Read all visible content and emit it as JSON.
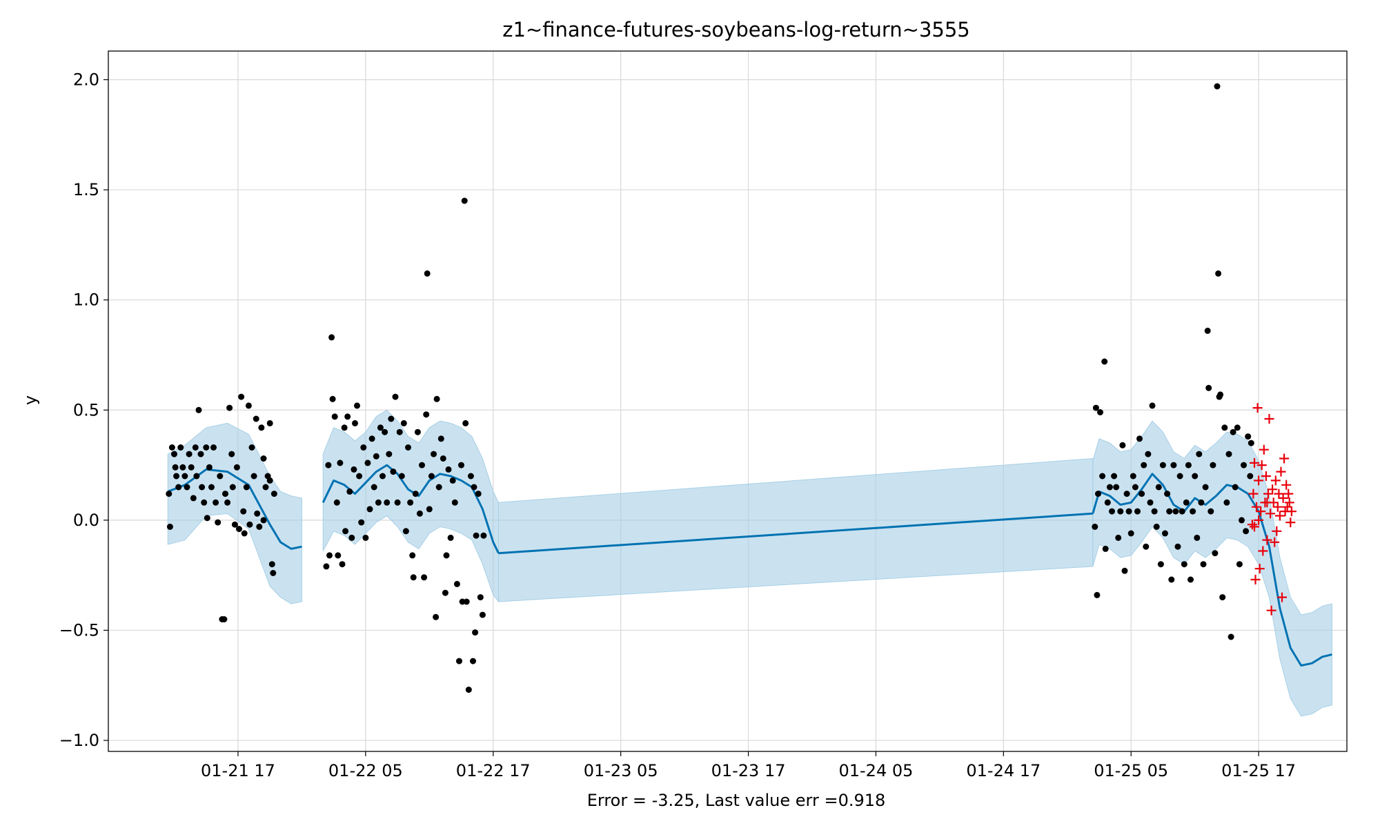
{
  "chart_data": {
    "type": "line",
    "title": "z1~finance-futures-soybeans-log-return~3555",
    "xlabel": "Error = -3.25, Last value err =0.918",
    "ylabel": "y",
    "x_ticks": [
      "01-21 17",
      "01-22 05",
      "01-22 17",
      "01-23 05",
      "01-23 17",
      "01-24 05",
      "01-24 17",
      "01-25 05",
      "01-25 17"
    ],
    "y_ticks": [
      "−1.0",
      "−0.5",
      "0.0",
      "0.5",
      "1.0",
      "1.5",
      "2.0"
    ],
    "ylim": [
      -1.05,
      2.13
    ],
    "xlim_hours_from_01_21_17": [
      -12.2,
      104.3
    ],
    "grid": true,
    "legend": "none",
    "colors": {
      "forecast": "#0072b2",
      "interval": "#a6cfe6",
      "observed": "#000000",
      "holdout": "#e8000b"
    },
    "forecast_segments": [
      {
        "x": [
          -6.6,
          -5,
          -3,
          -1,
          1,
          3,
          4,
          5,
          6
        ],
        "y": [
          0.13,
          0.16,
          0.23,
          0.22,
          0.16,
          -0.02,
          -0.1,
          -0.13,
          -0.12
        ],
        "band_upper": [
          0.3,
          0.34,
          0.42,
          0.44,
          0.39,
          0.2,
          0.13,
          0.11,
          0.1
        ],
        "band_lower": [
          -0.11,
          -0.09,
          0.02,
          0.03,
          -0.04,
          -0.3,
          -0.35,
          -0.38,
          -0.37
        ]
      },
      {
        "x": [
          8,
          9,
          10,
          11,
          12,
          13,
          14,
          15,
          16,
          17,
          18,
          19,
          20,
          21,
          22,
          23,
          24,
          24.5
        ],
        "y": [
          0.08,
          0.18,
          0.16,
          0.12,
          0.17,
          0.22,
          0.25,
          0.21,
          0.14,
          0.11,
          0.18,
          0.21,
          0.2,
          0.18,
          0.15,
          0.05,
          -0.1,
          -0.15
        ],
        "band_upper": [
          0.3,
          0.42,
          0.4,
          0.36,
          0.4,
          0.47,
          0.5,
          0.45,
          0.38,
          0.35,
          0.42,
          0.45,
          0.44,
          0.42,
          0.38,
          0.28,
          0.13,
          0.08
        ],
        "band_lower": [
          -0.14,
          -0.05,
          -0.07,
          -0.11,
          -0.06,
          -0.01,
          0.02,
          -0.03,
          -0.1,
          -0.13,
          -0.06,
          -0.03,
          -0.04,
          -0.06,
          -0.09,
          -0.2,
          -0.34,
          -0.37
        ]
      },
      {
        "x": [
          24.5,
          80.4
        ],
        "y": [
          -0.15,
          0.03
        ],
        "band_upper": [
          0.08,
          0.28
        ],
        "band_lower": [
          -0.37,
          -0.21
        ]
      },
      {
        "x": [
          80.4,
          81,
          82,
          83,
          84,
          85,
          86,
          87,
          88,
          89,
          90,
          91,
          92,
          93,
          94,
          95,
          96,
          97,
          98,
          99,
          100,
          101,
          102,
          102.9
        ],
        "y": [
          0.03,
          0.13,
          0.11,
          0.07,
          0.08,
          0.14,
          0.21,
          0.16,
          0.07,
          0.04,
          0.1,
          0.07,
          0.11,
          0.16,
          0.15,
          0.12,
          0.04,
          -0.12,
          -0.4,
          -0.58,
          -0.66,
          -0.65,
          -0.62,
          -0.61
        ],
        "band_upper": [
          0.27,
          0.37,
          0.35,
          0.31,
          0.32,
          0.38,
          0.45,
          0.4,
          0.31,
          0.28,
          0.34,
          0.31,
          0.35,
          0.4,
          0.39,
          0.36,
          0.27,
          0.11,
          -0.17,
          -0.35,
          -0.43,
          -0.42,
          -0.39,
          -0.38
        ],
        "band_lower": [
          -0.21,
          -0.11,
          -0.13,
          -0.17,
          -0.16,
          -0.1,
          -0.03,
          -0.08,
          -0.17,
          -0.2,
          -0.14,
          -0.17,
          -0.13,
          -0.08,
          -0.09,
          -0.12,
          -0.2,
          -0.35,
          -0.63,
          -0.81,
          -0.89,
          -0.88,
          -0.85,
          -0.84
        ]
      }
    ],
    "observed_points": [
      [
        -6.5,
        0.12
      ],
      [
        -6.4,
        -0.03
      ],
      [
        -6.2,
        0.33
      ],
      [
        -6.0,
        0.3
      ],
      [
        -5.9,
        0.24
      ],
      [
        -5.8,
        0.2
      ],
      [
        -5.6,
        0.15
      ],
      [
        -5.4,
        0.33
      ],
      [
        -5.2,
        0.24
      ],
      [
        -5.0,
        0.2
      ],
      [
        -4.8,
        0.15
      ],
      [
        -4.6,
        0.3
      ],
      [
        -4.4,
        0.24
      ],
      [
        -4.2,
        0.1
      ],
      [
        -4.0,
        0.33
      ],
      [
        -3.9,
        0.2
      ],
      [
        -3.7,
        0.5
      ],
      [
        -3.5,
        0.3
      ],
      [
        -3.4,
        0.15
      ],
      [
        -3.2,
        0.08
      ],
      [
        -3.0,
        0.33
      ],
      [
        -2.9,
        0.01
      ],
      [
        -2.7,
        0.24
      ],
      [
        -2.5,
        0.15
      ],
      [
        -2.3,
        0.33
      ],
      [
        -2.1,
        0.08
      ],
      [
        -1.9,
        -0.01
      ],
      [
        -1.7,
        0.2
      ],
      [
        -1.5,
        -0.45
      ],
      [
        -1.3,
        -0.45
      ],
      [
        -1.2,
        0.12
      ],
      [
        -1.0,
        0.08
      ],
      [
        -0.8,
        0.51
      ],
      [
        -0.6,
        0.3
      ],
      [
        -0.5,
        0.15
      ],
      [
        -0.3,
        -0.02
      ],
      [
        -0.1,
        0.24
      ],
      [
        0.1,
        -0.04
      ],
      [
        0.3,
        0.56
      ],
      [
        0.5,
        0.04
      ],
      [
        0.6,
        -0.06
      ],
      [
        0.8,
        0.15
      ],
      [
        1.0,
        0.52
      ],
      [
        1.1,
        -0.02
      ],
      [
        1.3,
        0.33
      ],
      [
        1.5,
        0.2
      ],
      [
        1.7,
        0.46
      ],
      [
        1.8,
        0.03
      ],
      [
        2.0,
        -0.03
      ],
      [
        2.2,
        0.42
      ],
      [
        2.4,
        0.28
      ],
      [
        2.6,
        0.15
      ],
      [
        2.8,
        0.2
      ],
      [
        3.0,
        0.44
      ],
      [
        3.2,
        -0.2
      ],
      [
        3.3,
        -0.24
      ],
      [
        3.4,
        0.12
      ],
      [
        3.0,
        0.18
      ],
      [
        2.4,
        0.0
      ],
      [
        8.3,
        -0.21
      ],
      [
        8.5,
        0.25
      ],
      [
        8.6,
        -0.16
      ],
      [
        8.8,
        0.83
      ],
      [
        8.9,
        0.55
      ],
      [
        9.1,
        0.47
      ],
      [
        9.3,
        0.08
      ],
      [
        9.4,
        -0.16
      ],
      [
        9.6,
        0.26
      ],
      [
        9.8,
        -0.2
      ],
      [
        10.0,
        0.42
      ],
      [
        10.1,
        -0.05
      ],
      [
        10.3,
        0.47
      ],
      [
        10.5,
        0.13
      ],
      [
        10.7,
        -0.08
      ],
      [
        10.9,
        0.23
      ],
      [
        11.0,
        0.44
      ],
      [
        11.2,
        0.52
      ],
      [
        11.4,
        0.2
      ],
      [
        11.6,
        -0.01
      ],
      [
        11.8,
        0.33
      ],
      [
        12.0,
        -0.08
      ],
      [
        12.2,
        0.26
      ],
      [
        12.4,
        0.05
      ],
      [
        12.6,
        0.37
      ],
      [
        12.8,
        0.15
      ],
      [
        13.0,
        0.29
      ],
      [
        13.2,
        0.08
      ],
      [
        13.4,
        0.42
      ],
      [
        13.6,
        0.2
      ],
      [
        13.8,
        0.4
      ],
      [
        14.0,
        0.08
      ],
      [
        14.2,
        0.3
      ],
      [
        14.4,
        0.46
      ],
      [
        14.6,
        0.22
      ],
      [
        14.8,
        0.56
      ],
      [
        15.0,
        0.08
      ],
      [
        15.2,
        0.4
      ],
      [
        15.4,
        0.2
      ],
      [
        15.6,
        0.44
      ],
      [
        15.8,
        -0.05
      ],
      [
        16.0,
        0.33
      ],
      [
        16.2,
        0.08
      ],
      [
        16.4,
        -0.16
      ],
      [
        16.5,
        -0.26
      ],
      [
        16.7,
        0.12
      ],
      [
        16.9,
        0.4
      ],
      [
        17.1,
        0.03
      ],
      [
        17.3,
        0.25
      ],
      [
        17.5,
        -0.26
      ],
      [
        17.7,
        0.48
      ],
      [
        17.8,
        1.12
      ],
      [
        18.0,
        0.05
      ],
      [
        18.2,
        0.2
      ],
      [
        18.4,
        0.3
      ],
      [
        18.6,
        -0.44
      ],
      [
        18.7,
        0.55
      ],
      [
        18.9,
        0.15
      ],
      [
        19.1,
        0.37
      ],
      [
        19.3,
        0.28
      ],
      [
        19.5,
        -0.33
      ],
      [
        19.6,
        -0.16
      ],
      [
        19.8,
        0.23
      ],
      [
        20.0,
        -0.08
      ],
      [
        20.2,
        0.18
      ],
      [
        20.4,
        0.08
      ],
      [
        20.6,
        -0.29
      ],
      [
        20.8,
        -0.64
      ],
      [
        21.0,
        0.25
      ],
      [
        21.1,
        -0.37
      ],
      [
        21.3,
        1.45
      ],
      [
        21.4,
        0.44
      ],
      [
        21.5,
        -0.37
      ],
      [
        21.7,
        -0.77
      ],
      [
        21.9,
        0.2
      ],
      [
        22.1,
        -0.64
      ],
      [
        22.3,
        -0.51
      ],
      [
        22.4,
        -0.07
      ],
      [
        22.6,
        0.12
      ],
      [
        22.8,
        -0.35
      ],
      [
        23.0,
        -0.43
      ],
      [
        22.2,
        0.15
      ],
      [
        23.1,
        -0.07
      ],
      [
        80.6,
        -0.03
      ],
      [
        80.7,
        0.51
      ],
      [
        80.8,
        -0.34
      ],
      [
        80.9,
        0.12
      ],
      [
        81.1,
        0.49
      ],
      [
        81.3,
        0.2
      ],
      [
        81.5,
        0.72
      ],
      [
        81.6,
        -0.13
      ],
      [
        81.8,
        0.08
      ],
      [
        82.0,
        0.15
      ],
      [
        82.2,
        0.04
      ],
      [
        82.4,
        0.2
      ],
      [
        82.6,
        0.15
      ],
      [
        82.8,
        -0.08
      ],
      [
        83.0,
        0.04
      ],
      [
        83.2,
        0.34
      ],
      [
        83.4,
        -0.23
      ],
      [
        83.6,
        0.12
      ],
      [
        83.8,
        0.04
      ],
      [
        84.0,
        -0.06
      ],
      [
        84.2,
        0.2
      ],
      [
        84.4,
        0.15
      ],
      [
        84.6,
        0.04
      ],
      [
        84.8,
        0.37
      ],
      [
        85.0,
        0.12
      ],
      [
        85.2,
        0.25
      ],
      [
        85.4,
        -0.12
      ],
      [
        85.6,
        0.3
      ],
      [
        85.8,
        0.08
      ],
      [
        86.0,
        0.52
      ],
      [
        86.2,
        0.04
      ],
      [
        86.4,
        -0.03
      ],
      [
        86.6,
        0.15
      ],
      [
        86.8,
        -0.2
      ],
      [
        87.0,
        0.25
      ],
      [
        87.2,
        -0.06
      ],
      [
        87.4,
        0.12
      ],
      [
        87.6,
        0.04
      ],
      [
        87.8,
        -0.27
      ],
      [
        88.0,
        0.25
      ],
      [
        88.2,
        0.04
      ],
      [
        88.4,
        -0.12
      ],
      [
        88.6,
        0.2
      ],
      [
        88.8,
        0.04
      ],
      [
        89.0,
        -0.2
      ],
      [
        89.2,
        0.08
      ],
      [
        89.4,
        0.25
      ],
      [
        89.6,
        -0.27
      ],
      [
        89.8,
        0.04
      ],
      [
        90.0,
        0.2
      ],
      [
        90.2,
        -0.08
      ],
      [
        90.4,
        0.3
      ],
      [
        90.6,
        0.08
      ],
      [
        90.8,
        -0.2
      ],
      [
        91.0,
        0.15
      ],
      [
        91.2,
        0.86
      ],
      [
        91.3,
        0.6
      ],
      [
        91.5,
        0.04
      ],
      [
        91.7,
        0.25
      ],
      [
        91.9,
        -0.15
      ],
      [
        92.1,
        1.97
      ],
      [
        92.2,
        1.12
      ],
      [
        92.3,
        0.56
      ],
      [
        92.4,
        0.57
      ],
      [
        92.6,
        -0.35
      ],
      [
        92.8,
        0.42
      ],
      [
        93.0,
        0.08
      ],
      [
        93.2,
        0.3
      ],
      [
        93.4,
        -0.53
      ],
      [
        93.6,
        0.4
      ],
      [
        93.8,
        0.15
      ],
      [
        94.0,
        0.42
      ],
      [
        94.2,
        -0.2
      ],
      [
        94.4,
        0.0
      ],
      [
        94.6,
        0.25
      ],
      [
        94.8,
        -0.05
      ],
      [
        95.0,
        0.38
      ],
      [
        95.2,
        0.2
      ],
      [
        95.3,
        0.35
      ]
    ],
    "holdout_points": [
      [
        95.4,
        -0.02
      ],
      [
        95.5,
        0.12
      ],
      [
        95.6,
        0.26
      ],
      [
        95.7,
        -0.27
      ],
      [
        95.8,
        0.06
      ],
      [
        95.9,
        0.51
      ],
      [
        96.0,
        0.18
      ],
      [
        96.1,
        -0.22
      ],
      [
        96.2,
        0.04
      ],
      [
        96.3,
        0.25
      ],
      [
        96.4,
        -0.14
      ],
      [
        96.5,
        0.32
      ],
      [
        96.6,
        0.08
      ],
      [
        96.7,
        0.2
      ],
      [
        96.8,
        -0.09
      ],
      [
        96.9,
        0.12
      ],
      [
        97.0,
        0.46
      ],
      [
        97.1,
        0.03
      ],
      [
        97.2,
        -0.41
      ],
      [
        97.3,
        0.14
      ],
      [
        97.4,
        0.08
      ],
      [
        97.5,
        -0.1
      ],
      [
        97.6,
        0.18
      ],
      [
        97.7,
        -0.05
      ],
      [
        97.8,
        0.06
      ],
      [
        97.9,
        0.12
      ],
      [
        98.0,
        0.02
      ],
      [
        98.1,
        0.22
      ],
      [
        98.2,
        -0.35
      ],
      [
        98.3,
        0.1
      ],
      [
        98.4,
        0.28
      ],
      [
        98.5,
        0.04
      ],
      [
        98.6,
        0.16
      ],
      [
        98.7,
        0.06
      ],
      [
        98.8,
        0.12
      ],
      [
        98.9,
        0.08
      ],
      [
        99.0,
        -0.01
      ],
      [
        99.1,
        0.04
      ],
      [
        95.6,
        -0.03
      ],
      [
        96.0,
        0.0
      ],
      [
        96.8,
        0.08
      ]
    ]
  }
}
